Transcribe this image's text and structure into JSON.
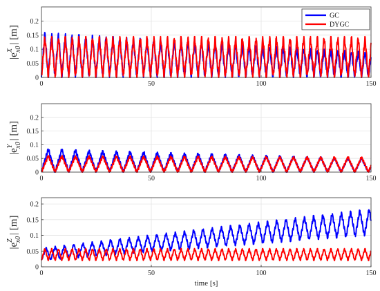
{
  "figure": {
    "xlabel": "time [s]",
    "xticks": [
      "0",
      "50",
      "100",
      "150"
    ],
    "legend_placement": "top-right of first panel",
    "grid": true
  },
  "colors": {
    "GC": "#0000ff",
    "DYGC": "#ff0000"
  },
  "chart_data": [
    {
      "type": "line",
      "ylabel": "|e_{x0}^X| [m]",
      "ylabel_parts": {
        "base": "|e",
        "sup": "X",
        "sub": "x0",
        "tail": "| [m]"
      },
      "xlim": [
        0,
        150
      ],
      "ylim": [
        0,
        0.25
      ],
      "yticks": [
        "0",
        "0.05",
        "0.1",
        "0.15",
        "0.2"
      ],
      "legend": [
        "GC",
        "DYGC"
      ],
      "series": [
        {
          "name": "GC",
          "color": "#0000ff",
          "kind": "oscillation",
          "period": 3.1,
          "low": 0,
          "high_start": 0.16,
          "high_end": 0.09
        },
        {
          "name": "DYGC",
          "color": "#ff0000",
          "kind": "oscillation",
          "period": 3.1,
          "low": 0,
          "high_start": 0.145,
          "high_end": 0.145
        }
      ]
    },
    {
      "type": "line",
      "ylabel": "|e_{x0}^Y| [m]",
      "ylabel_parts": {
        "base": "|e",
        "sup": "Y",
        "sub": "x0",
        "tail": "| [m]"
      },
      "xlim": [
        0,
        150
      ],
      "ylim": [
        0,
        0.25
      ],
      "yticks": [
        "0",
        "0.05",
        "0.1",
        "0.15",
        "0.2"
      ],
      "series": [
        {
          "name": "GC",
          "color": "#0000ff",
          "kind": "oscillation",
          "period": 6.2,
          "low": 0,
          "high_start": 0.085,
          "high_end": 0.05
        },
        {
          "name": "DYGC",
          "color": "#ff0000",
          "kind": "oscillation",
          "period": 6.2,
          "low": 0,
          "high_start": 0.06,
          "high_end": 0.055
        }
      ]
    },
    {
      "type": "line",
      "ylabel": "|e_{x0}^Z| [m]",
      "ylabel_parts": {
        "base": "|e",
        "sup": "Z",
        "sub": "x0",
        "tail": "| [m]"
      },
      "xlim": [
        0,
        150
      ],
      "ylim": [
        0,
        0.22
      ],
      "yticks": [
        "0",
        "0.05",
        "0.1",
        "0.15",
        "0.2"
      ],
      "series": [
        {
          "name": "GC",
          "color": "#0000ff",
          "kind": "growing",
          "period": 4.2,
          "low_start": 0.02,
          "low_end": 0.1,
          "high_start": 0.06,
          "high_end": 0.185
        },
        {
          "name": "DYGC",
          "color": "#ff0000",
          "kind": "oscillation",
          "period": 3.1,
          "low": 0.02,
          "high_start": 0.058,
          "high_end": 0.058
        }
      ]
    }
  ]
}
